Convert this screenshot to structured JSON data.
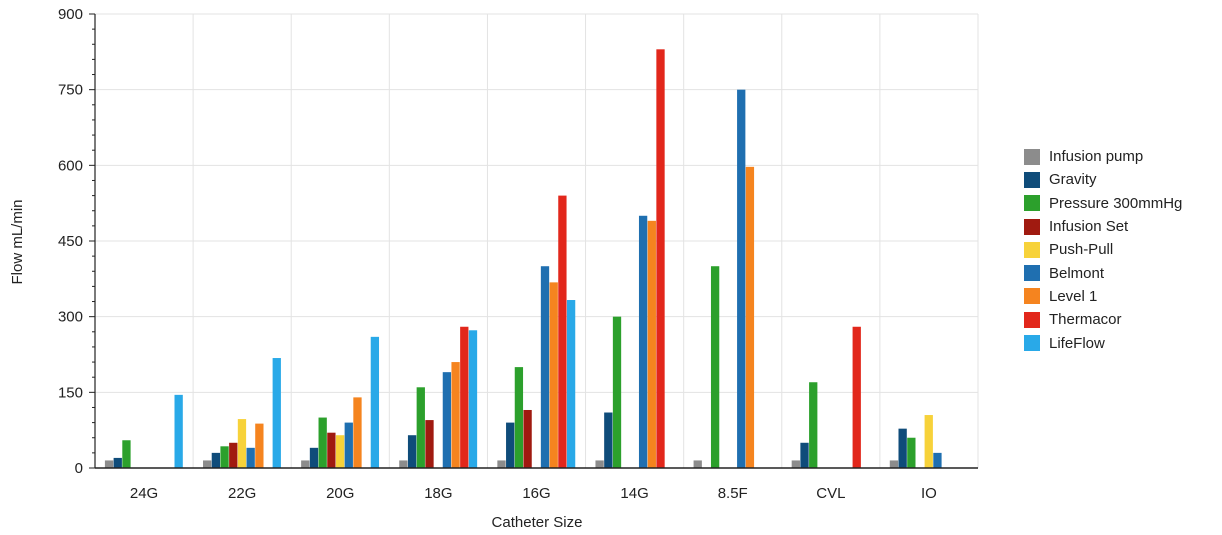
{
  "chart_data": {
    "type": "bar",
    "title": "",
    "xlabel": "Catheter Size",
    "ylabel": "Flow mL/min",
    "ylim": [
      0,
      900
    ],
    "yticks": [
      "0",
      "150",
      "300",
      "450",
      "600",
      "750",
      "900"
    ],
    "grid": true,
    "legend_position": "right",
    "categories": [
      "24G",
      "22G",
      "20G",
      "18G",
      "16G",
      "14G",
      "8.5F",
      "CVL",
      "IO"
    ],
    "series": [
      {
        "name": "Infusion pump",
        "color": "#8c8c8c",
        "values": [
          15,
          15,
          15,
          15,
          15,
          15,
          15,
          15,
          15
        ]
      },
      {
        "name": "Gravity",
        "color": "#0f4c7a",
        "values": [
          20,
          30,
          40,
          65,
          90,
          110,
          0,
          50,
          78
        ]
      },
      {
        "name": "Pressure 300mmHg",
        "color": "#2ca02c",
        "values": [
          55,
          43,
          100,
          160,
          200,
          300,
          400,
          170,
          60
        ]
      },
      {
        "name": "Infusion Set",
        "color": "#a01a10",
        "values": [
          0,
          50,
          70,
          95,
          115,
          0,
          0,
          0,
          0
        ]
      },
      {
        "name": "Push-Pull",
        "color": "#f7d23a",
        "values": [
          0,
          97,
          65,
          0,
          0,
          0,
          0,
          0,
          105
        ]
      },
      {
        "name": "Belmont",
        "color": "#1f6fb0",
        "values": [
          0,
          40,
          90,
          190,
          400,
          500,
          750,
          0,
          30
        ]
      },
      {
        "name": "Level 1",
        "color": "#f5841f",
        "values": [
          0,
          88,
          140,
          210,
          368,
          490,
          597,
          0,
          0
        ]
      },
      {
        "name": "Thermacor",
        "color": "#e2271b",
        "values": [
          0,
          0,
          0,
          280,
          540,
          830,
          0,
          280,
          0
        ]
      },
      {
        "name": "LifeFlow",
        "color": "#29a9e8",
        "values": [
          145,
          218,
          260,
          273,
          333,
          0,
          0,
          0,
          0
        ]
      }
    ]
  }
}
